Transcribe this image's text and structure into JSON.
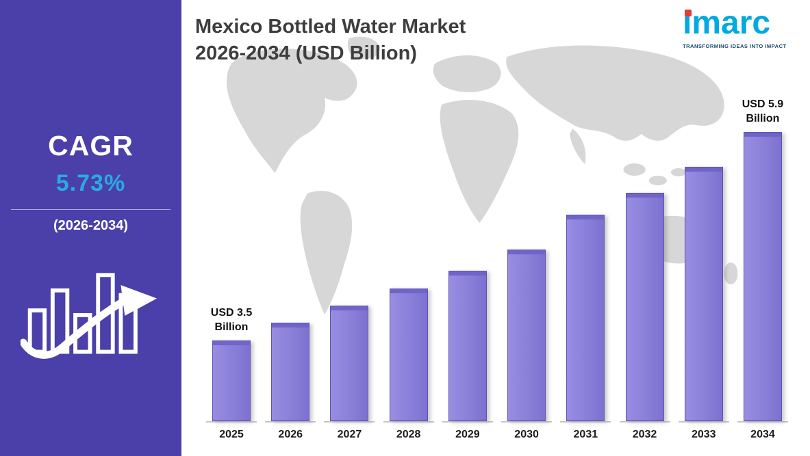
{
  "sidebar": {
    "bg_color": "#4b3fa9",
    "cagr_label": "CAGR",
    "cagr_value": "5.73%",
    "cagr_value_color": "#29abe2",
    "period": "(2026-2034)"
  },
  "header": {
    "title_line1": "Mexico Bottled Water Market",
    "title_line2": "2026-2034 (USD Billion)"
  },
  "logo": {
    "name": "imarc",
    "tagline": "TRANSFORMING IDEAS INTO IMPACT",
    "brand_color": "#00a9e1",
    "dot_color": "#e63b2e"
  },
  "chart_data": {
    "type": "bar",
    "title": "Mexico Bottled Water Market 2026-2034 (USD Billion)",
    "unit": "USD Billion",
    "categories": [
      "2025",
      "2026",
      "2027",
      "2028",
      "2029",
      "2030",
      "2031",
      "2032",
      "2033",
      "2034"
    ],
    "values": [
      3.5,
      3.7,
      3.9,
      4.1,
      4.3,
      4.55,
      4.95,
      5.2,
      5.5,
      5.9
    ],
    "annotations": [
      {
        "index": 0,
        "label": "USD 3.5 Billion"
      },
      {
        "index": 9,
        "label": "USD 5.9 Billion"
      }
    ],
    "bar_color": "#8a7fd8",
    "ylim": [
      0,
      6.5
    ],
    "grid": false,
    "legend": false
  }
}
